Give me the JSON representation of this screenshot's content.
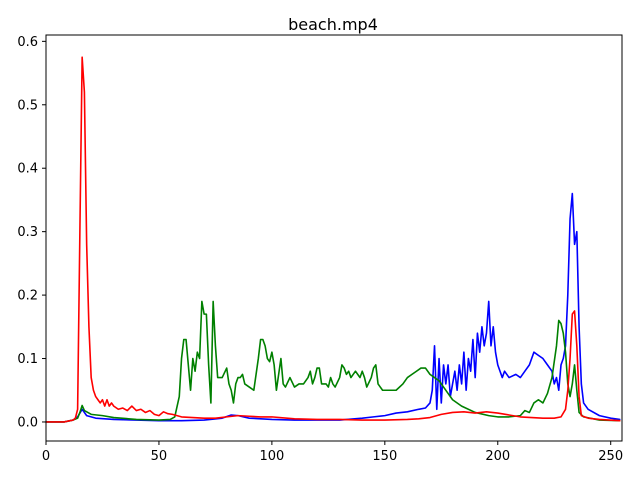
{
  "chart_data": {
    "type": "line",
    "title": "beach.mp4",
    "xlabel": "",
    "ylabel": "",
    "xlim": [
      0,
      255
    ],
    "ylim": [
      -0.03,
      0.61
    ],
    "grid": false,
    "legend": "none",
    "x_ticks": [
      {
        "value": 0,
        "label": "0"
      },
      {
        "value": 50,
        "label": "50"
      },
      {
        "value": 100,
        "label": "100"
      },
      {
        "value": 150,
        "label": "150"
      },
      {
        "value": 200,
        "label": "200"
      },
      {
        "value": 250,
        "label": "250"
      }
    ],
    "y_ticks": [
      {
        "value": 0.0,
        "label": "0.0"
      },
      {
        "value": 0.1,
        "label": "0.1"
      },
      {
        "value": 0.2,
        "label": "0.2"
      },
      {
        "value": 0.3,
        "label": "0.3"
      },
      {
        "value": 0.4,
        "label": "0.4"
      },
      {
        "value": 0.5,
        "label": "0.5"
      },
      {
        "value": 0.6,
        "label": "0.6"
      }
    ],
    "series": [
      {
        "color": "#0000ff",
        "points": [
          [
            0,
            0
          ],
          [
            8,
            0
          ],
          [
            12,
            0.003
          ],
          [
            14,
            0.008
          ],
          [
            16,
            0.02
          ],
          [
            18,
            0.01
          ],
          [
            22,
            0.006
          ],
          [
            30,
            0.004
          ],
          [
            40,
            0.003
          ],
          [
            50,
            0.002
          ],
          [
            60,
            0.002
          ],
          [
            70,
            0.003
          ],
          [
            78,
            0.006
          ],
          [
            82,
            0.011
          ],
          [
            85,
            0.01
          ],
          [
            90,
            0.006
          ],
          [
            100,
            0.004
          ],
          [
            110,
            0.003
          ],
          [
            120,
            0.003
          ],
          [
            130,
            0.003
          ],
          [
            140,
            0.006
          ],
          [
            145,
            0.008
          ],
          [
            150,
            0.01
          ],
          [
            155,
            0.014
          ],
          [
            160,
            0.016
          ],
          [
            165,
            0.02
          ],
          [
            168,
            0.022
          ],
          [
            170,
            0.03
          ],
          [
            171,
            0.05
          ],
          [
            172,
            0.12
          ],
          [
            173,
            0.02
          ],
          [
            174,
            0.1
          ],
          [
            175,
            0.03
          ],
          [
            176,
            0.09
          ],
          [
            177,
            0.06
          ],
          [
            178,
            0.09
          ],
          [
            179,
            0.04
          ],
          [
            180,
            0.06
          ],
          [
            181,
            0.08
          ],
          [
            182,
            0.05
          ],
          [
            183,
            0.09
          ],
          [
            184,
            0.06
          ],
          [
            185,
            0.11
          ],
          [
            186,
            0.05
          ],
          [
            187,
            0.1
          ],
          [
            188,
            0.08
          ],
          [
            189,
            0.13
          ],
          [
            190,
            0.07
          ],
          [
            191,
            0.14
          ],
          [
            192,
            0.11
          ],
          [
            193,
            0.15
          ],
          [
            194,
            0.12
          ],
          [
            195,
            0.14
          ],
          [
            196,
            0.19
          ],
          [
            197,
            0.12
          ],
          [
            198,
            0.15
          ],
          [
            199,
            0.11
          ],
          [
            200,
            0.09
          ],
          [
            201,
            0.08
          ],
          [
            202,
            0.07
          ],
          [
            203,
            0.08
          ],
          [
            205,
            0.07
          ],
          [
            208,
            0.075
          ],
          [
            210,
            0.07
          ],
          [
            212,
            0.08
          ],
          [
            214,
            0.09
          ],
          [
            216,
            0.11
          ],
          [
            218,
            0.105
          ],
          [
            220,
            0.1
          ],
          [
            222,
            0.09
          ],
          [
            224,
            0.08
          ],
          [
            225,
            0.06
          ],
          [
            226,
            0.07
          ],
          [
            227,
            0.05
          ],
          [
            228,
            0.09
          ],
          [
            229,
            0.1
          ],
          [
            230,
            0.12
          ],
          [
            231,
            0.2
          ],
          [
            232,
            0.32
          ],
          [
            233,
            0.36
          ],
          [
            234,
            0.28
          ],
          [
            235,
            0.3
          ],
          [
            236,
            0.15
          ],
          [
            237,
            0.06
          ],
          [
            238,
            0.03
          ],
          [
            240,
            0.02
          ],
          [
            245,
            0.01
          ],
          [
            250,
            0.006
          ],
          [
            254,
            0.004
          ]
        ]
      },
      {
        "color": "#008000",
        "points": [
          [
            0,
            0
          ],
          [
            8,
            0
          ],
          [
            12,
            0.003
          ],
          [
            14,
            0.006
          ],
          [
            15,
            0.015
          ],
          [
            16,
            0.026
          ],
          [
            17,
            0.018
          ],
          [
            20,
            0.012
          ],
          [
            25,
            0.01
          ],
          [
            30,
            0.007
          ],
          [
            40,
            0.004
          ],
          [
            50,
            0.003
          ],
          [
            55,
            0.004
          ],
          [
            57,
            0.008
          ],
          [
            59,
            0.04
          ],
          [
            60,
            0.1
          ],
          [
            61,
            0.13
          ],
          [
            62,
            0.13
          ],
          [
            63,
            0.09
          ],
          [
            64,
            0.05
          ],
          [
            65,
            0.1
          ],
          [
            66,
            0.08
          ],
          [
            67,
            0.11
          ],
          [
            68,
            0.1
          ],
          [
            69,
            0.19
          ],
          [
            70,
            0.17
          ],
          [
            71,
            0.17
          ],
          [
            72,
            0.09
          ],
          [
            73,
            0.03
          ],
          [
            74,
            0.19
          ],
          [
            75,
            0.12
          ],
          [
            76,
            0.07
          ],
          [
            77,
            0.07
          ],
          [
            78,
            0.07
          ],
          [
            80,
            0.085
          ],
          [
            81,
            0.06
          ],
          [
            82,
            0.05
          ],
          [
            83,
            0.03
          ],
          [
            84,
            0.06
          ],
          [
            85,
            0.07
          ],
          [
            86,
            0.07
          ],
          [
            87,
            0.075
          ],
          [
            88,
            0.06
          ],
          [
            90,
            0.055
          ],
          [
            92,
            0.05
          ],
          [
            94,
            0.1
          ],
          [
            95,
            0.13
          ],
          [
            96,
            0.13
          ],
          [
            97,
            0.12
          ],
          [
            98,
            0.1
          ],
          [
            99,
            0.095
          ],
          [
            100,
            0.11
          ],
          [
            101,
            0.09
          ],
          [
            102,
            0.05
          ],
          [
            104,
            0.1
          ],
          [
            105,
            0.06
          ],
          [
            106,
            0.055
          ],
          [
            108,
            0.07
          ],
          [
            110,
            0.055
          ],
          [
            112,
            0.06
          ],
          [
            114,
            0.06
          ],
          [
            116,
            0.07
          ],
          [
            117,
            0.08
          ],
          [
            118,
            0.06
          ],
          [
            119,
            0.07
          ],
          [
            120,
            0.085
          ],
          [
            121,
            0.085
          ],
          [
            122,
            0.06
          ],
          [
            124,
            0.06
          ],
          [
            125,
            0.055
          ],
          [
            126,
            0.07
          ],
          [
            127,
            0.06
          ],
          [
            128,
            0.055
          ],
          [
            130,
            0.07
          ],
          [
            131,
            0.09
          ],
          [
            132,
            0.085
          ],
          [
            133,
            0.075
          ],
          [
            134,
            0.08
          ],
          [
            135,
            0.07
          ],
          [
            137,
            0.08
          ],
          [
            138,
            0.075
          ],
          [
            139,
            0.07
          ],
          [
            140,
            0.08
          ],
          [
            141,
            0.07
          ],
          [
            142,
            0.055
          ],
          [
            144,
            0.07
          ],
          [
            145,
            0.085
          ],
          [
            146,
            0.09
          ],
          [
            147,
            0.06
          ],
          [
            149,
            0.05
          ],
          [
            150,
            0.05
          ],
          [
            155,
            0.05
          ],
          [
            158,
            0.06
          ],
          [
            160,
            0.07
          ],
          [
            162,
            0.075
          ],
          [
            164,
            0.08
          ],
          [
            166,
            0.085
          ],
          [
            168,
            0.085
          ],
          [
            170,
            0.075
          ],
          [
            172,
            0.07
          ],
          [
            174,
            0.065
          ],
          [
            176,
            0.055
          ],
          [
            178,
            0.045
          ],
          [
            180,
            0.035
          ],
          [
            184,
            0.025
          ],
          [
            190,
            0.015
          ],
          [
            196,
            0.01
          ],
          [
            200,
            0.008
          ],
          [
            205,
            0.008
          ],
          [
            210,
            0.01
          ],
          [
            212,
            0.018
          ],
          [
            214,
            0.015
          ],
          [
            216,
            0.03
          ],
          [
            218,
            0.035
          ],
          [
            220,
            0.03
          ],
          [
            222,
            0.045
          ],
          [
            224,
            0.07
          ],
          [
            226,
            0.12
          ],
          [
            227,
            0.16
          ],
          [
            228,
            0.155
          ],
          [
            229,
            0.14
          ],
          [
            230,
            0.11
          ],
          [
            231,
            0.06
          ],
          [
            232,
            0.04
          ],
          [
            233,
            0.06
          ],
          [
            234,
            0.09
          ],
          [
            235,
            0.05
          ],
          [
            236,
            0.015
          ],
          [
            238,
            0.008
          ],
          [
            245,
            0.003
          ],
          [
            254,
            0.002
          ]
        ]
      },
      {
        "color": "#ff0000",
        "points": [
          [
            0,
            0
          ],
          [
            8,
            0
          ],
          [
            12,
            0.003
          ],
          [
            13,
            0.006
          ],
          [
            14,
            0.02
          ],
          [
            15,
            0.3
          ],
          [
            16,
            0.575
          ],
          [
            17,
            0.52
          ],
          [
            18,
            0.28
          ],
          [
            19,
            0.15
          ],
          [
            20,
            0.07
          ],
          [
            21,
            0.05
          ],
          [
            22,
            0.04
          ],
          [
            23,
            0.035
          ],
          [
            24,
            0.03
          ],
          [
            25,
            0.035
          ],
          [
            26,
            0.025
          ],
          [
            27,
            0.035
          ],
          [
            28,
            0.025
          ],
          [
            29,
            0.03
          ],
          [
            30,
            0.025
          ],
          [
            32,
            0.02
          ],
          [
            34,
            0.022
          ],
          [
            36,
            0.018
          ],
          [
            38,
            0.025
          ],
          [
            40,
            0.018
          ],
          [
            42,
            0.02
          ],
          [
            44,
            0.015
          ],
          [
            46,
            0.018
          ],
          [
            48,
            0.012
          ],
          [
            50,
            0.01
          ],
          [
            52,
            0.016
          ],
          [
            54,
            0.013
          ],
          [
            56,
            0.012
          ],
          [
            58,
            0.01
          ],
          [
            60,
            0.008
          ],
          [
            65,
            0.007
          ],
          [
            70,
            0.006
          ],
          [
            75,
            0.006
          ],
          [
            80,
            0.008
          ],
          [
            85,
            0.01
          ],
          [
            90,
            0.009
          ],
          [
            95,
            0.008
          ],
          [
            100,
            0.008
          ],
          [
            110,
            0.005
          ],
          [
            120,
            0.004
          ],
          [
            130,
            0.004
          ],
          [
            140,
            0.003
          ],
          [
            150,
            0.003
          ],
          [
            160,
            0.004
          ],
          [
            165,
            0.005
          ],
          [
            170,
            0.007
          ],
          [
            175,
            0.012
          ],
          [
            180,
            0.015
          ],
          [
            185,
            0.016
          ],
          [
            190,
            0.014
          ],
          [
            195,
            0.016
          ],
          [
            200,
            0.014
          ],
          [
            205,
            0.011
          ],
          [
            210,
            0.008
          ],
          [
            215,
            0.007
          ],
          [
            220,
            0.006
          ],
          [
            225,
            0.006
          ],
          [
            228,
            0.008
          ],
          [
            230,
            0.02
          ],
          [
            231,
            0.05
          ],
          [
            232,
            0.1
          ],
          [
            233,
            0.17
          ],
          [
            234,
            0.175
          ],
          [
            235,
            0.12
          ],
          [
            236,
            0.04
          ],
          [
            237,
            0.01
          ],
          [
            240,
            0.006
          ],
          [
            245,
            0.004
          ],
          [
            254,
            0.002
          ]
        ]
      }
    ]
  }
}
